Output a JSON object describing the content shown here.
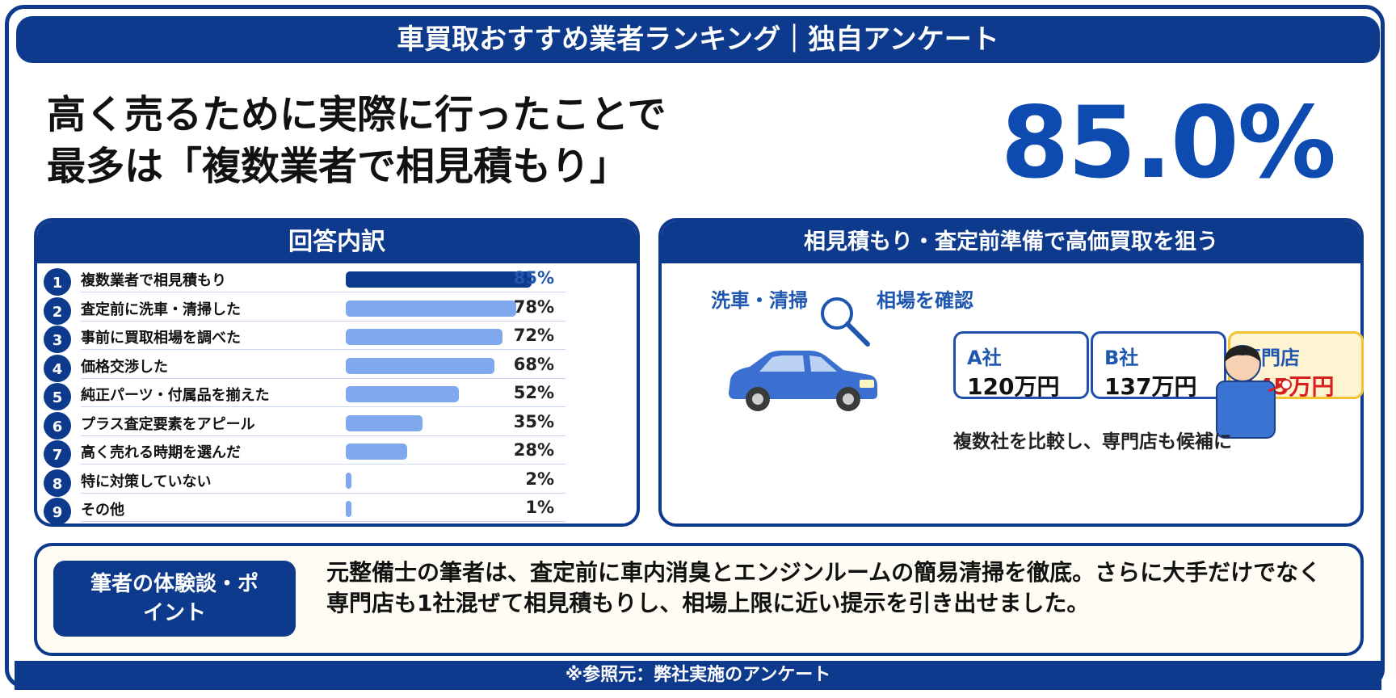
{
  "header": {
    "title": "車買取おすすめ業者ランキング｜独自アンケート"
  },
  "headline": {
    "line1": "高く売るために実際に行ったことで",
    "line2": "最多は「複数業者で相見積もり」",
    "big_value": "85.0%"
  },
  "chart_data": {
    "type": "bar",
    "title": "回答内訳",
    "orientation": "horizontal",
    "categories": [
      "複数業者で相見積もり",
      "査定前に洗車・清掃した",
      "事前に買取相場を調べた",
      "価格交渉した",
      "純正パーツ・付属品を揃えた",
      "プラス査定要素をアピール",
      "高く売れる時期を選んだ",
      "特に対策していない",
      "その他"
    ],
    "ranks": [
      "1",
      "2",
      "3",
      "4",
      "5",
      "6",
      "7",
      "8",
      "9"
    ],
    "values": [
      85,
      78,
      72,
      68,
      52,
      35,
      28,
      2,
      1
    ],
    "value_labels": [
      "85%",
      "78%",
      "72%",
      "68%",
      "52%",
      "35%",
      "28%",
      "2%",
      "1%"
    ],
    "xlim": [
      0,
      100
    ],
    "colors": {
      "highlight": "#0d3a8c",
      "bar": "#7fa9ec",
      "highlight_label": "#1f56b0",
      "label": "#222222"
    }
  },
  "right_panel": {
    "title": "相見積もり・査定前準備で高価買取を狙う",
    "label_wash": "洗車・清掃",
    "label_market": "相場を確認",
    "quotes": [
      {
        "name": "A社",
        "price": "120万円"
      },
      {
        "name": "B社",
        "price": "137万円"
      },
      {
        "name": "専門店",
        "price": "145万円"
      }
    ],
    "note": "複数社を比較し、専門店も候補に"
  },
  "experience": {
    "badge": "筆者の体験談・ポイント",
    "text": "元整備士の筆者は、査定前に車内消臭とエンジンルームの簡易清掃を徹底。さらに大手だけでなく専門店も1社混ぜて相見積もりし、相場上限に近い提示を引き出せました。"
  },
  "footer": {
    "source": "※参照元：弊社実施のアンケート"
  }
}
